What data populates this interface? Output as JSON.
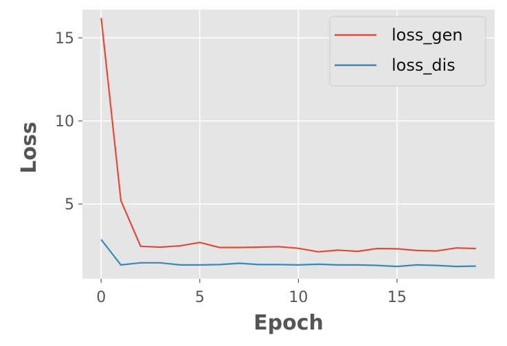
{
  "chart_data": {
    "type": "line",
    "title": "",
    "xlabel": "Epoch",
    "ylabel": "Loss",
    "xlim": [
      -0.95,
      19.95
    ],
    "ylim": [
      0.5,
      16.7
    ],
    "grid": true,
    "legend_position": "top-right",
    "xticks": [
      0,
      5,
      10,
      15
    ],
    "yticks": [
      5,
      10,
      15
    ],
    "x": [
      0,
      1,
      2,
      3,
      4,
      5,
      6,
      7,
      8,
      9,
      10,
      11,
      12,
      13,
      14,
      15,
      16,
      17,
      18,
      19
    ],
    "series": [
      {
        "name": "loss_gen",
        "color": "#E24A33",
        "values": [
          16.2,
          5.2,
          2.45,
          2.4,
          2.48,
          2.68,
          2.38,
          2.38,
          2.4,
          2.43,
          2.33,
          2.12,
          2.22,
          2.15,
          2.32,
          2.3,
          2.2,
          2.17,
          2.35,
          2.32
        ]
      },
      {
        "name": "loss_dis",
        "color": "#348ABD",
        "values": [
          2.85,
          1.33,
          1.46,
          1.46,
          1.33,
          1.33,
          1.35,
          1.43,
          1.35,
          1.35,
          1.33,
          1.37,
          1.33,
          1.33,
          1.3,
          1.24,
          1.33,
          1.3,
          1.24,
          1.26
        ]
      }
    ]
  }
}
